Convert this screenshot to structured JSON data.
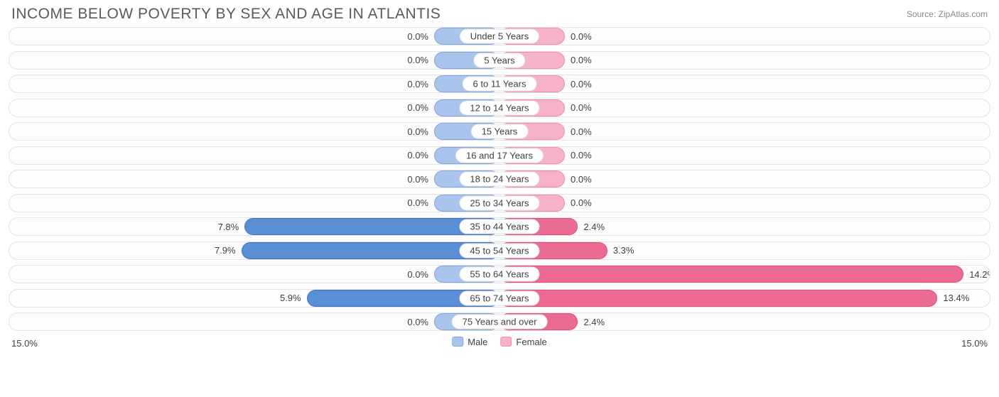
{
  "title": "INCOME BELOW POVERTY BY SEX AND AGE IN ATLANTIS",
  "source": "Source: ZipAtlas.com",
  "chart": {
    "type": "diverging-bar",
    "axis_max": 15.0,
    "axis_label_left": "15.0%",
    "axis_label_right": "15.0%",
    "min_bar_pct": 2.0,
    "track_bg": "#fdfdfd",
    "track_border": "#e3e3e3",
    "label_bg": "#ffffff",
    "colors": {
      "male_light_fill": "#a9c5eb",
      "male_light_border": "#7ea6dd",
      "male_dark_fill": "#5a8fd6",
      "male_dark_border": "#3f73c0",
      "female_light_fill": "#f6b2c6",
      "female_light_border": "#ef8fae",
      "female_dark_fill": "#ec6b93",
      "female_dark_border": "#e14e7d"
    },
    "legend": {
      "male": "Male",
      "female": "Female"
    },
    "rows": [
      {
        "category": "Under 5 Years",
        "male": 0.0,
        "female": 0.0
      },
      {
        "category": "5 Years",
        "male": 0.0,
        "female": 0.0
      },
      {
        "category": "6 to 11 Years",
        "male": 0.0,
        "female": 0.0
      },
      {
        "category": "12 to 14 Years",
        "male": 0.0,
        "female": 0.0
      },
      {
        "category": "15 Years",
        "male": 0.0,
        "female": 0.0
      },
      {
        "category": "16 and 17 Years",
        "male": 0.0,
        "female": 0.0
      },
      {
        "category": "18 to 24 Years",
        "male": 0.0,
        "female": 0.0
      },
      {
        "category": "25 to 34 Years",
        "male": 0.0,
        "female": 0.0
      },
      {
        "category": "35 to 44 Years",
        "male": 7.8,
        "female": 2.4
      },
      {
        "category": "45 to 54 Years",
        "male": 7.9,
        "female": 3.3
      },
      {
        "category": "55 to 64 Years",
        "male": 0.0,
        "female": 14.2
      },
      {
        "category": "65 to 74 Years",
        "male": 5.9,
        "female": 13.4
      },
      {
        "category": "75 Years and over",
        "male": 0.0,
        "female": 2.4
      }
    ]
  }
}
